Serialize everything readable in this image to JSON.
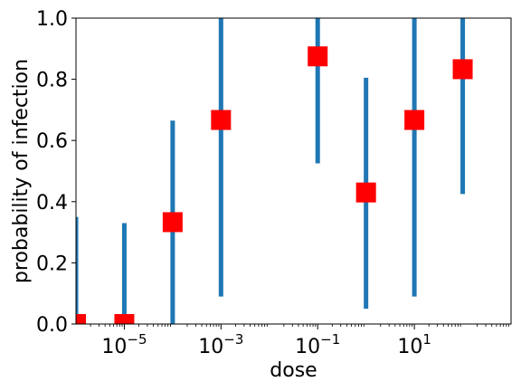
{
  "chart_data": {
    "type": "scatter",
    "xlabel": "dose",
    "ylabel": "probability of infection",
    "xscale": "log",
    "xlim": [
      1e-06,
      1000
    ],
    "ylim": [
      0,
      1
    ],
    "yticks": [
      {
        "value": 0.0,
        "label": "0.0"
      },
      {
        "value": 0.2,
        "label": "0.2"
      },
      {
        "value": 0.4,
        "label": "0.4"
      },
      {
        "value": 0.6,
        "label": "0.6"
      },
      {
        "value": 0.8,
        "label": "0.8"
      },
      {
        "value": 1.0,
        "label": "1.0"
      }
    ],
    "xticks": [
      {
        "value": 1e-05,
        "base": "10",
        "exp": "−5"
      },
      {
        "value": 0.001,
        "base": "10",
        "exp": "−3"
      },
      {
        "value": 0.1,
        "base": "10",
        "exp": "−1"
      },
      {
        "value": 10,
        "base": "10",
        "exp": "1"
      }
    ],
    "points": [
      {
        "x": 1e-06,
        "y": 0.0,
        "lower": 0.0,
        "upper": 0.35
      },
      {
        "x": 1e-05,
        "y": 0.0,
        "lower": 0.0,
        "upper": 0.33
      },
      {
        "x": 0.0001,
        "y": 0.333,
        "lower": 0.0,
        "upper": 0.665
      },
      {
        "x": 0.001,
        "y": 0.667,
        "lower": 0.09,
        "upper": 1.0
      },
      {
        "x": 0.1,
        "y": 0.875,
        "lower": 0.525,
        "upper": 1.0
      },
      {
        "x": 1,
        "y": 0.43,
        "lower": 0.05,
        "upper": 0.805
      },
      {
        "x": 10,
        "y": 0.667,
        "lower": 0.09,
        "upper": 1.0
      },
      {
        "x": 100,
        "y": 0.833,
        "lower": 0.425,
        "upper": 1.0
      }
    ],
    "colors": {
      "errorbar": "#1f77b4",
      "marker": "#ff0000",
      "axis": "#000000"
    },
    "grid": false,
    "legend": "none"
  }
}
